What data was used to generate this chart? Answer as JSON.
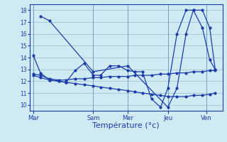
{
  "background_color": "#d0eaf3",
  "grid_color": "#9bbccc",
  "line_color": "#1a3caa",
  "xlabel": "Température (°c)",
  "xlabel_fontsize": 8,
  "yticks": [
    10,
    11,
    12,
    13,
    14,
    15,
    16,
    17,
    18
  ],
  "ylim": [
    9.5,
    18.5
  ],
  "xtick_labels": [
    "Mar",
    "Sam",
    "Mer",
    "Jeu",
    "Ven"
  ],
  "xtick_positions": [
    0.0,
    0.33,
    0.52,
    0.74,
    0.95
  ],
  "series1_x": [
    0.0,
    0.04,
    0.09,
    0.14,
    0.18,
    0.23,
    0.28,
    0.33,
    0.37,
    0.42,
    0.47,
    0.52,
    0.56,
    0.6,
    0.65,
    0.7,
    0.74,
    0.79,
    0.84,
    0.88,
    0.93,
    0.97,
    1.0
  ],
  "series1_y": [
    14.2,
    12.7,
    12.1,
    12.0,
    11.9,
    12.9,
    13.5,
    12.5,
    12.5,
    13.3,
    13.3,
    12.9,
    12.8,
    12.8,
    10.5,
    9.8,
    11.4,
    16.0,
    18.0,
    18.0,
    16.5,
    13.8,
    13.0
  ],
  "series2_x": [
    0.0,
    0.04,
    0.09,
    0.14,
    0.18,
    0.23,
    0.28,
    0.33,
    0.37,
    0.42,
    0.47,
    0.52,
    0.56,
    0.6,
    0.65,
    0.7,
    0.74,
    0.79,
    0.84,
    0.88,
    0.93,
    0.97,
    1.0
  ],
  "series2_y": [
    12.6,
    12.5,
    12.2,
    12.1,
    12.1,
    12.2,
    12.2,
    12.3,
    12.3,
    12.4,
    12.4,
    12.4,
    12.5,
    12.5,
    12.5,
    12.6,
    12.6,
    12.7,
    12.7,
    12.8,
    12.8,
    12.9,
    12.9
  ],
  "series3_x": [
    0.0,
    0.04,
    0.09,
    0.14,
    0.18,
    0.23,
    0.28,
    0.33,
    0.37,
    0.42,
    0.47,
    0.52,
    0.56,
    0.6,
    0.65,
    0.7,
    0.74,
    0.79,
    0.84,
    0.88,
    0.93,
    0.97,
    1.0
  ],
  "series3_y": [
    12.5,
    12.3,
    12.1,
    12.0,
    11.9,
    11.8,
    11.7,
    11.6,
    11.5,
    11.4,
    11.3,
    11.2,
    11.1,
    11.0,
    10.9,
    10.8,
    10.7,
    10.7,
    10.7,
    10.8,
    10.8,
    10.9,
    11.0
  ],
  "series4_x": [
    0.04,
    0.09,
    0.33,
    0.52,
    0.74,
    0.79,
    0.84,
    0.88,
    0.93,
    0.97,
    1.0
  ],
  "series4_y": [
    17.5,
    17.1,
    12.8,
    13.3,
    9.8,
    11.4,
    16.0,
    18.0,
    18.0,
    16.5,
    13.0
  ]
}
